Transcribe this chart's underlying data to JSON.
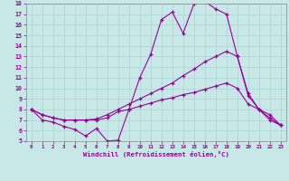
{
  "xlabel": "Windchill (Refroidissement éolien,°C)",
  "xlim": [
    -0.5,
    23.5
  ],
  "ylim": [
    5,
    18
  ],
  "xticks": [
    0,
    1,
    2,
    3,
    4,
    5,
    6,
    7,
    8,
    9,
    10,
    11,
    12,
    13,
    14,
    15,
    16,
    17,
    18,
    19,
    20,
    21,
    22,
    23
  ],
  "yticks": [
    5,
    6,
    7,
    8,
    9,
    10,
    11,
    12,
    13,
    14,
    15,
    16,
    17,
    18
  ],
  "bg_color": "#c8e8e8",
  "line_color": "#990099",
  "grid_color": "#aad4d4",
  "line1_x": [
    0,
    1,
    2,
    3,
    4,
    5,
    6,
    7,
    8,
    9,
    10,
    11,
    12,
    13,
    14,
    15,
    16,
    17,
    18,
    19,
    20,
    21,
    22,
    23
  ],
  "line1_y": [
    8.0,
    7.0,
    6.8,
    6.4,
    6.1,
    5.5,
    6.2,
    5.0,
    5.1,
    8.0,
    11.0,
    13.2,
    16.5,
    17.2,
    15.2,
    18.0,
    18.2,
    17.5,
    17.0,
    13.0,
    9.3,
    8.0,
    7.0,
    6.5
  ],
  "line2_x": [
    0,
    1,
    2,
    3,
    4,
    5,
    6,
    7,
    8,
    9,
    10,
    11,
    12,
    13,
    14,
    15,
    16,
    17,
    18,
    19,
    20,
    21,
    22,
    23
  ],
  "line2_y": [
    8.0,
    7.5,
    7.2,
    7.0,
    7.0,
    7.0,
    7.1,
    7.5,
    8.0,
    8.5,
    9.0,
    9.5,
    10.0,
    10.5,
    11.2,
    11.8,
    12.5,
    13.0,
    13.5,
    13.0,
    9.5,
    8.0,
    7.5,
    6.5
  ],
  "line3_x": [
    0,
    1,
    2,
    3,
    4,
    5,
    6,
    7,
    8,
    9,
    10,
    11,
    12,
    13,
    14,
    15,
    16,
    17,
    18,
    19,
    20,
    21,
    22,
    23
  ],
  "line3_y": [
    8.0,
    7.5,
    7.2,
    7.0,
    7.0,
    7.0,
    7.0,
    7.2,
    7.8,
    8.0,
    8.3,
    8.6,
    8.9,
    9.1,
    9.4,
    9.6,
    9.9,
    10.2,
    10.5,
    10.0,
    8.5,
    8.0,
    7.2,
    6.5
  ]
}
